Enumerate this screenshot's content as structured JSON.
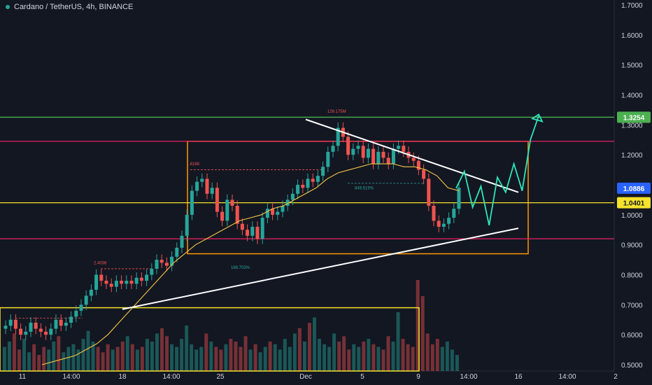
{
  "header": {
    "title": "Cardano / TetherUS, 4h, BINANCE"
  },
  "chart_data": {
    "type": "candlestick",
    "symbol": "Cardano / TetherUS",
    "interval": "4h",
    "exchange": "BINANCE",
    "ylim": [
      0.5,
      1.7
    ],
    "y_ticks": [
      "1.7000",
      "1.6000",
      "1.5000",
      "1.4000",
      "1.3000",
      "1.2000",
      "1.1000",
      "1.0000",
      "0.9000",
      "0.8000",
      "0.7000",
      "0.6000",
      "0.5000"
    ],
    "y_tick_values": [
      1.7,
      1.6,
      1.5,
      1.4,
      1.3,
      1.2,
      1.1,
      1.0,
      0.9,
      0.8,
      0.7,
      0.6,
      0.5
    ],
    "x_ticks": [
      "11",
      "14:00",
      "18",
      "14:00",
      "25",
      "Dec",
      "5",
      "9",
      "14:00",
      "16",
      "14:00",
      "2"
    ],
    "price_tags": [
      {
        "label": "1.3254",
        "value": 1.3254,
        "color": "#4caf50"
      },
      {
        "label": "1.0886",
        "value": 1.0886,
        "color": "#2962ff"
      },
      {
        "label": "1.0401",
        "value": 1.0401,
        "color": "#f5e32c"
      }
    ],
    "horizontal_levels": [
      {
        "value": 1.3254,
        "color": "#4caf50"
      },
      {
        "value": 1.245,
        "color": "#e91e63"
      },
      {
        "value": 1.0401,
        "color": "#f5e32c"
      },
      {
        "value": 0.92,
        "color": "#e91e63"
      }
    ],
    "annotations": [
      {
        "text": "126.175M",
        "color": "#ef5350"
      },
      {
        "text": ".8168",
        "color": "#ef5350"
      },
      {
        "text": "2.4038",
        "color": "#ef5350"
      },
      {
        "text": "849.519%",
        "color": "#26a69a"
      },
      {
        "text": "168.703%",
        "color": "#26a69a"
      }
    ],
    "close_series": [
      0.63,
      0.65,
      0.62,
      0.6,
      0.61,
      0.64,
      0.62,
      0.61,
      0.6,
      0.62,
      0.65,
      0.63,
      0.64,
      0.66,
      0.68,
      0.7,
      0.73,
      0.75,
      0.8,
      0.78,
      0.77,
      0.76,
      0.78,
      0.77,
      0.78,
      0.77,
      0.79,
      0.78,
      0.8,
      0.82,
      0.85,
      0.84,
      0.83,
      0.86,
      0.89,
      0.93,
      1.0,
      1.08,
      1.11,
      1.12,
      1.07,
      1.09,
      1.01,
      0.98,
      1.05,
      1.03,
      0.97,
      0.95,
      0.93,
      0.96,
      0.92,
      0.99,
      1.02,
      1.0,
      1.01,
      1.03,
      1.05,
      1.07,
      1.1,
      1.09,
      1.12,
      1.11,
      1.13,
      1.16,
      1.21,
      1.23,
      1.29,
      1.26,
      1.2,
      1.22,
      1.23,
      1.19,
      1.22,
      1.17,
      1.21,
      1.19,
      1.17,
      1.22,
      1.23,
      1.21,
      1.19,
      1.18,
      1.15,
      1.12,
      1.03,
      0.98,
      0.96,
      0.97,
      0.99,
      1.02,
      1.09
    ],
    "ma_series": [
      0.5,
      0.51,
      0.52,
      0.53,
      0.55,
      0.57,
      0.6,
      0.64,
      0.68,
      0.72,
      0.76,
      0.8,
      0.84,
      0.87,
      0.9,
      0.92,
      0.94,
      0.96,
      0.98,
      0.99,
      1.0,
      1.02,
      1.03,
      1.05,
      1.07,
      1.09,
      1.12,
      1.14,
      1.15,
      1.16,
      1.17,
      1.17,
      1.17,
      1.16,
      1.16,
      1.15,
      1.13,
      1.09,
      1.08
    ],
    "trendlines": [
      {
        "from": {
          "x": "18",
          "y": 0.685
        },
        "to": {
          "x": "16",
          "y": 0.955
        },
        "color": "#ffffff"
      },
      {
        "from": {
          "x": "Dec",
          "y": 1.318
        },
        "to": {
          "x": "16",
          "y": 1.075
        },
        "color": "#ffffff"
      }
    ],
    "projection_path": [
      1.0886,
      1.145,
      1.025,
      1.095,
      0.965,
      1.125,
      1.075,
      1.17,
      1.08,
      1.25,
      1.33
    ],
    "range_box": {
      "high": 1.245,
      "low": 0.87,
      "color": "#ff9800"
    },
    "lower_box": {
      "high": 0.69,
      "low": 0.5,
      "color": "#f5e32c"
    },
    "volume": [
      9,
      11,
      14,
      8,
      12,
      7,
      10,
      6,
      9,
      8,
      11,
      13,
      7,
      9,
      10,
      8,
      12,
      15,
      11,
      9,
      7,
      10,
      8,
      9,
      11,
      13,
      10,
      8,
      9,
      12,
      11,
      14,
      16,
      13,
      10,
      9,
      12,
      17,
      10,
      8,
      9,
      14,
      11,
      9,
      8,
      10,
      12,
      11,
      9,
      13,
      8,
      10,
      7,
      9,
      11,
      10,
      8,
      12,
      9,
      14,
      16,
      11,
      18,
      20,
      12,
      10,
      9,
      14,
      11,
      13,
      8,
      10,
      9,
      11,
      12,
      10,
      9,
      8,
      13,
      11,
      22,
      12,
      10,
      9,
      34,
      28,
      14,
      10,
      12,
      9,
      11,
      8,
      6
    ]
  }
}
